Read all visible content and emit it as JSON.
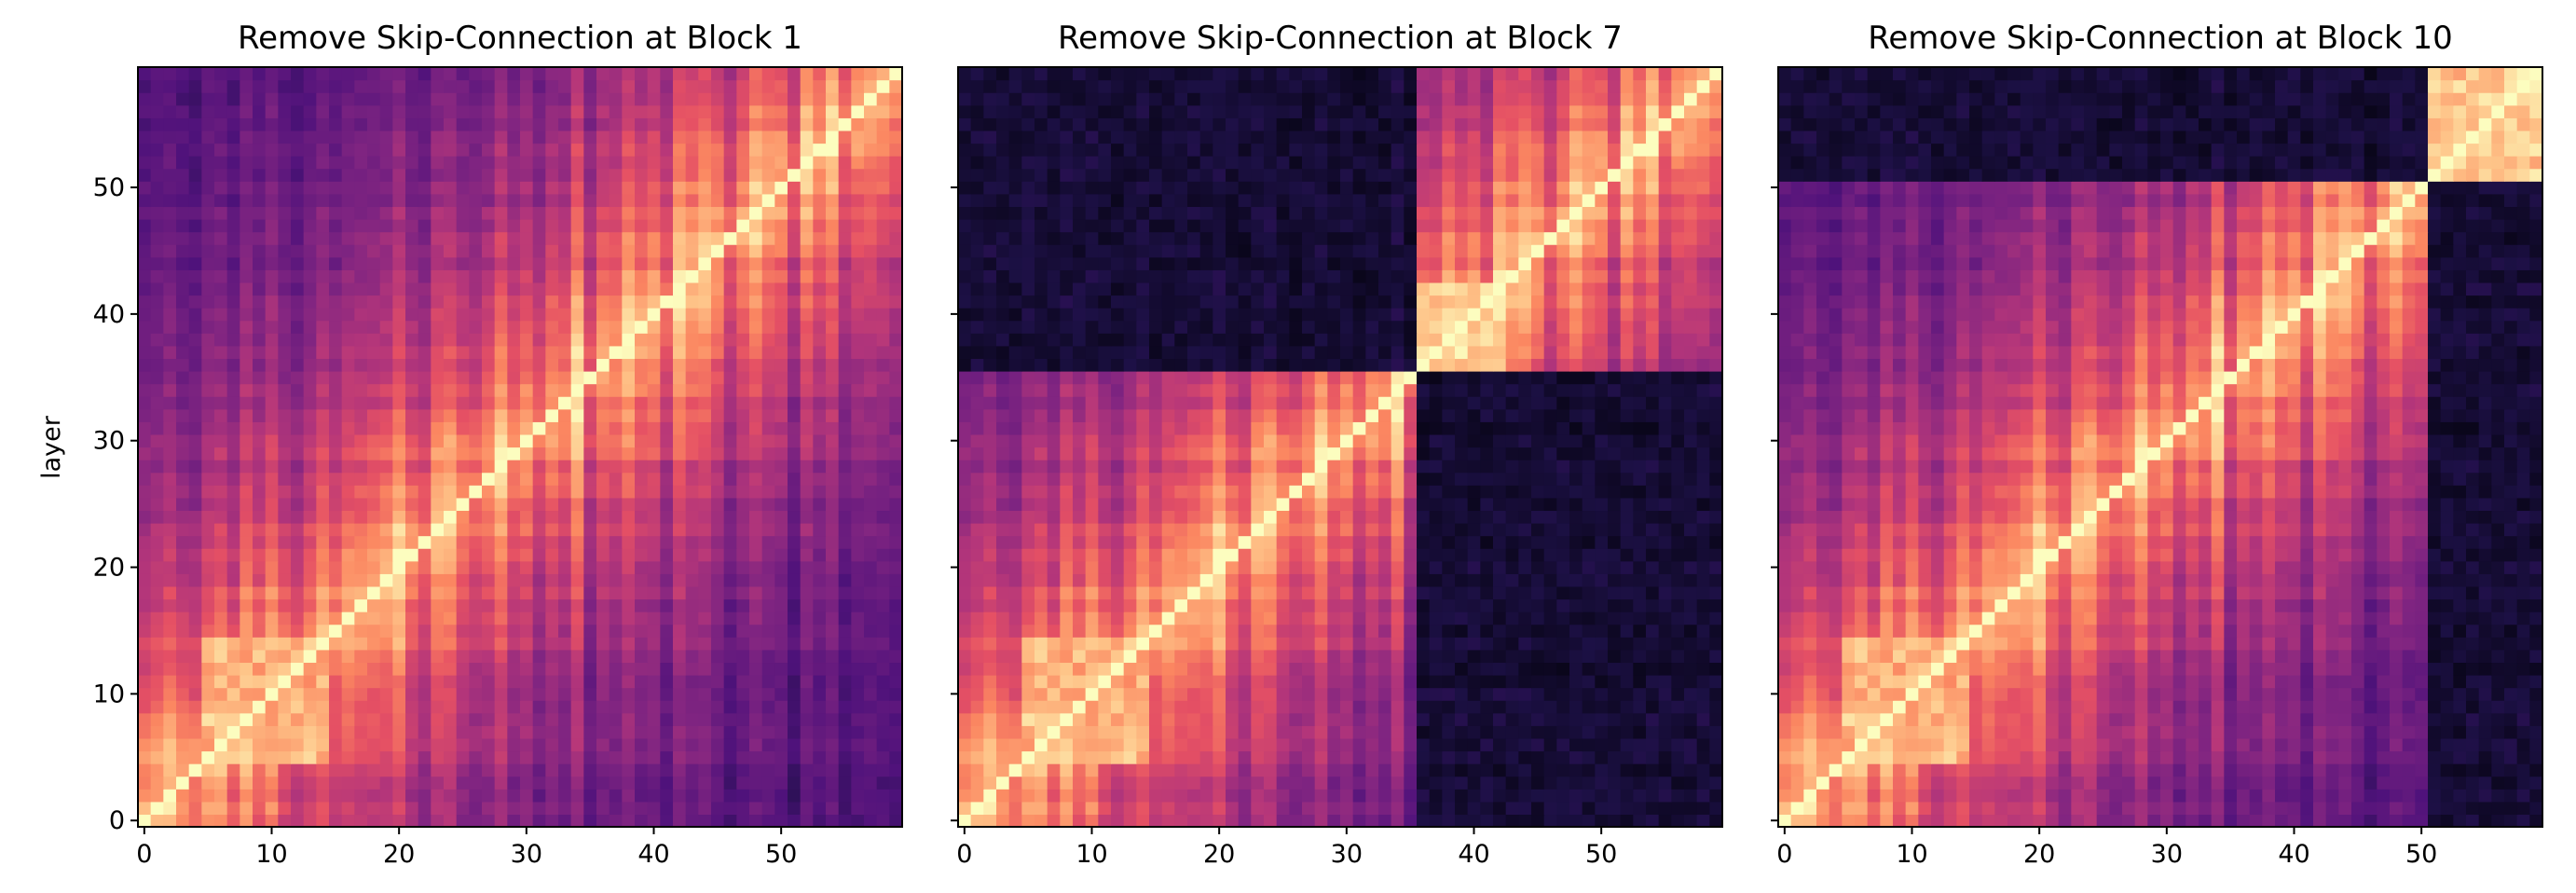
{
  "chart_data": {
    "type": "heatmap",
    "colormap": "magma",
    "size": 60,
    "ylabel": "layer",
    "xticks": [
      0,
      10,
      20,
      30,
      40,
      50
    ],
    "yticks": [
      0,
      10,
      20,
      30,
      40,
      50
    ],
    "xlim": [
      0,
      59
    ],
    "ylim": [
      0,
      59
    ],
    "origin": "lower",
    "shared_y": true,
    "panels": [
      {
        "title": "Remove Skip-Connection at Block 1",
        "split_layer": null
      },
      {
        "title": "Remove Skip-Connection at Block 7",
        "split_layer": 36
      },
      {
        "title": "Remove Skip-Connection at Block 10",
        "split_layer": 51
      }
    ]
  }
}
